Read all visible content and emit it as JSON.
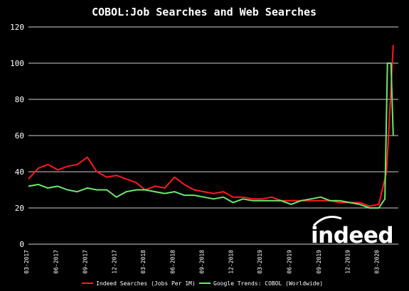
{
  "chart_data": {
    "type": "line",
    "title": "COBOL:Job Searches and Web Searches",
    "xlabel": "",
    "ylabel": "",
    "ylim": [
      0,
      120
    ],
    "yticks": [
      0,
      20,
      40,
      60,
      80,
      100,
      120
    ],
    "x_range": [
      "2017-03",
      "2020-05"
    ],
    "xticks": [
      "03-2017",
      "06-2017",
      "09-2017",
      "12-2017",
      "03-2018",
      "06-2018",
      "09-2018",
      "12-2018",
      "03-2019",
      "06-2019",
      "09-2019",
      "12-2019",
      "03-2020"
    ],
    "grid": "horizontal",
    "legend_position": "bottom",
    "series": [
      {
        "name": "Indeed Searches (Jobs Per 1M)",
        "color": "#ff1a1a",
        "points": [
          [
            "2017-03",
            36
          ],
          [
            "2017-04",
            42
          ],
          [
            "2017-05",
            44
          ],
          [
            "2017-06",
            41
          ],
          [
            "2017-07",
            43
          ],
          [
            "2017-08",
            44
          ],
          [
            "2017-09",
            48
          ],
          [
            "2017-10",
            40
          ],
          [
            "2017-11",
            37
          ],
          [
            "2017-12",
            38
          ],
          [
            "2018-01",
            36
          ],
          [
            "2018-02",
            34
          ],
          [
            "2018-03",
            30
          ],
          [
            "2018-04",
            32
          ],
          [
            "2018-05",
            31
          ],
          [
            "2018-06",
            37
          ],
          [
            "2018-07",
            33
          ],
          [
            "2018-08",
            30
          ],
          [
            "2018-09",
            29
          ],
          [
            "2018-10",
            28
          ],
          [
            "2018-11",
            29
          ],
          [
            "2018-12",
            26
          ],
          [
            "2019-01",
            26
          ],
          [
            "2019-02",
            25
          ],
          [
            "2019-03",
            25
          ],
          [
            "2019-04",
            26
          ],
          [
            "2019-05",
            24
          ],
          [
            "2019-06",
            24
          ],
          [
            "2019-07",
            24
          ],
          [
            "2019-08",
            24
          ],
          [
            "2019-09",
            24
          ],
          [
            "2019-10",
            24
          ],
          [
            "2019-11",
            23
          ],
          [
            "2019-12",
            23
          ],
          [
            "2020-01",
            23
          ],
          [
            "2020-02",
            21
          ],
          [
            "2020-03",
            22
          ],
          [
            "2020-03-25",
            40
          ],
          [
            "2020-04",
            62
          ],
          [
            "2020-04-15",
            110
          ]
        ]
      },
      {
        "name": "Google Trends: COBOL (Worldwide)",
        "color": "#6de86d",
        "points": [
          [
            "2017-03",
            32
          ],
          [
            "2017-04",
            33
          ],
          [
            "2017-05",
            31
          ],
          [
            "2017-06",
            32
          ],
          [
            "2017-07",
            30
          ],
          [
            "2017-08",
            29
          ],
          [
            "2017-09",
            31
          ],
          [
            "2017-10",
            30
          ],
          [
            "2017-11",
            30
          ],
          [
            "2017-12",
            26
          ],
          [
            "2018-01",
            29
          ],
          [
            "2018-02",
            30
          ],
          [
            "2018-03",
            30
          ],
          [
            "2018-04",
            29
          ],
          [
            "2018-05",
            28
          ],
          [
            "2018-06",
            29
          ],
          [
            "2018-07",
            27
          ],
          [
            "2018-08",
            27
          ],
          [
            "2018-09",
            26
          ],
          [
            "2018-10",
            25
          ],
          [
            "2018-11",
            26
          ],
          [
            "2018-12",
            23
          ],
          [
            "2019-01",
            25
          ],
          [
            "2019-02",
            24
          ],
          [
            "2019-03",
            24
          ],
          [
            "2019-04",
            24
          ],
          [
            "2019-05",
            24
          ],
          [
            "2019-06",
            22
          ],
          [
            "2019-07",
            24
          ],
          [
            "2019-08",
            25
          ],
          [
            "2019-09",
            26
          ],
          [
            "2019-10",
            24
          ],
          [
            "2019-11",
            24
          ],
          [
            "2019-12",
            23
          ],
          [
            "2020-01",
            22
          ],
          [
            "2020-02",
            20
          ],
          [
            "2020-03",
            20
          ],
          [
            "2020-03-20",
            25
          ],
          [
            "2020-03-28",
            100
          ],
          [
            "2020-04-08",
            100
          ],
          [
            "2020-04-15",
            60
          ]
        ]
      }
    ]
  },
  "brand": {
    "logo_text": "indeed"
  }
}
